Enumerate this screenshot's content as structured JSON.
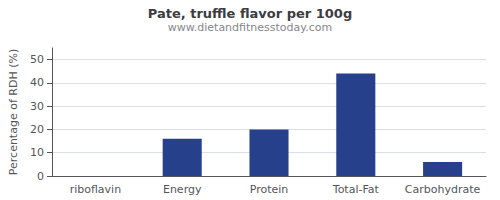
{
  "chart_data": {
    "type": "bar",
    "title": "Pate, truffle flavor per 100g",
    "subtitle": "www.dietandfitnesstoday.com",
    "categories": [
      "riboflavin",
      "Energy",
      "Protein",
      "Total-Fat",
      "Carbohydrate"
    ],
    "values": [
      0,
      16,
      20,
      44,
      6
    ],
    "color": "#27408b",
    "ylabel": "Percentage of RDH (%)",
    "ylim": [
      0,
      55
    ],
    "yticks": [
      0,
      10,
      20,
      30,
      40,
      50
    ],
    "grid": true
  }
}
